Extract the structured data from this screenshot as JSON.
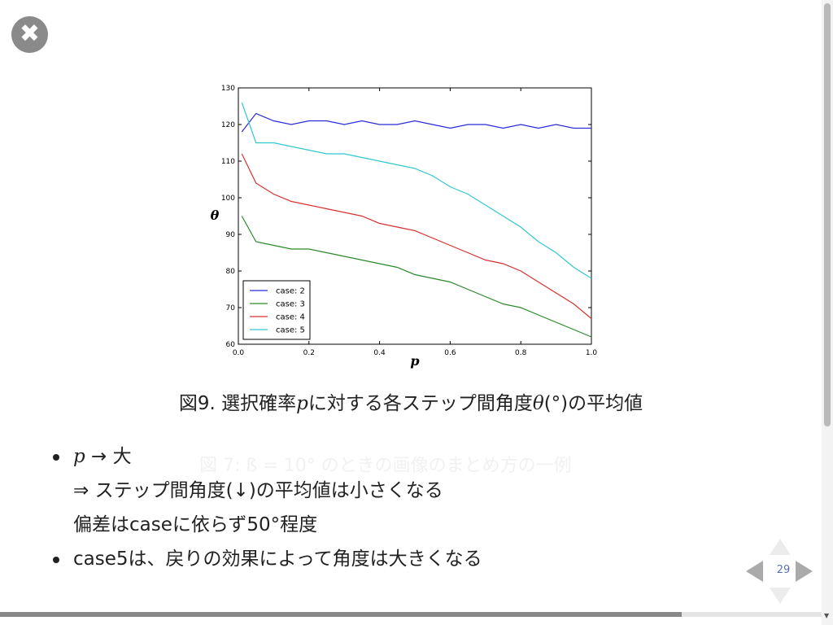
{
  "close": {
    "symbol": "✖"
  },
  "caption": {
    "prefix": "図9. 選択確率",
    "var_p": "p",
    "middle": "に対する各ステップ間角度",
    "var_theta": "θ",
    "suffix": "(°)の平均値"
  },
  "ghost_text": "図 7: ß = 10° のときの画像のまとめ方の一例",
  "bullets": {
    "line1_var": "p",
    "line1_text": " → 大",
    "line2": "⇒ ステップ間角度(↓)の平均値は小さくなる",
    "line3": "偏差はcaseに依らず50°程度",
    "line4": "case5は、戻りの効果によって角度は大きくなる"
  },
  "nav": {
    "slide_number": "29"
  },
  "progress": {
    "fraction": 0.83
  },
  "chart_data": {
    "type": "line",
    "title": "",
    "xlabel": "p",
    "ylabel": "θ",
    "xlim": [
      0.0,
      1.0
    ],
    "ylim": [
      60,
      130
    ],
    "xticks": [
      "0.0",
      "0.2",
      "0.4",
      "0.6",
      "0.8",
      "1.0"
    ],
    "yticks": [
      "60",
      "70",
      "80",
      "90",
      "100",
      "110",
      "120",
      "130"
    ],
    "x": [
      0.01,
      0.05,
      0.1,
      0.15,
      0.2,
      0.25,
      0.3,
      0.35,
      0.4,
      0.45,
      0.5,
      0.55,
      0.6,
      0.65,
      0.7,
      0.75,
      0.8,
      0.85,
      0.9,
      0.95,
      1.0
    ],
    "legend_position": "lower-left",
    "series": [
      {
        "name": "case: 2",
        "color": "#2b2bd6",
        "values": [
          118,
          123,
          121,
          120,
          121,
          121,
          120,
          121,
          120,
          120,
          121,
          120,
          119,
          120,
          120,
          119,
          120,
          119,
          120,
          119,
          119
        ]
      },
      {
        "name": "case: 3",
        "color": "#2a8a2a",
        "values": [
          95,
          88,
          87,
          86,
          86,
          85,
          84,
          83,
          82,
          81,
          79,
          78,
          77,
          75,
          73,
          71,
          70,
          68,
          66,
          64,
          62
        ]
      },
      {
        "name": "case: 4",
        "color": "#d63030",
        "values": [
          112,
          104,
          101,
          99,
          98,
          97,
          96,
          95,
          93,
          92,
          91,
          89,
          87,
          85,
          83,
          82,
          80,
          77,
          74,
          71,
          67
        ]
      },
      {
        "name": "case: 5",
        "color": "#30c8d0",
        "values": [
          126,
          115,
          115,
          114,
          113,
          112,
          112,
          111,
          110,
          109,
          108,
          106,
          103,
          101,
          98,
          95,
          92,
          88,
          85,
          81,
          78
        ]
      }
    ]
  }
}
